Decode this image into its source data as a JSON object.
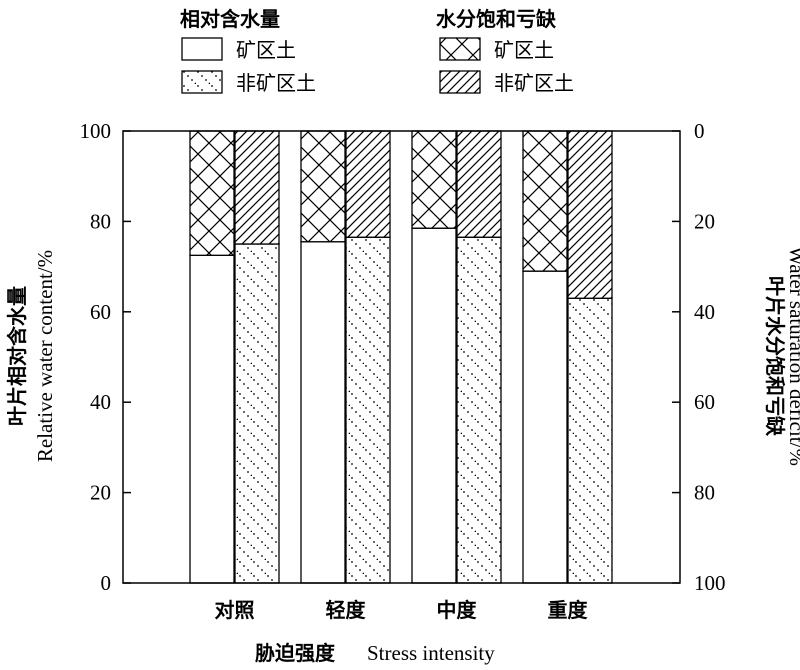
{
  "chart_data": {
    "type": "bar",
    "stacked": true,
    "categories": [
      "对照",
      "轻度",
      "中度",
      "重度"
    ],
    "series": [
      {
        "name": "矿区土",
        "group": "相对含水量",
        "values": [
          72.5,
          75.5,
          78.5,
          69.0
        ],
        "pattern": "blank"
      },
      {
        "name": "非矿区土",
        "group": "相对含水量",
        "values": [
          75.0,
          76.5,
          76.5,
          63.0
        ],
        "pattern": "dots"
      },
      {
        "name": "矿区土",
        "group": "水分饱和亏缺",
        "values": [
          27.5,
          24.5,
          21.5,
          31.0
        ],
        "pattern": "crosshatch"
      },
      {
        "name": "非矿区土",
        "group": "水分饱和亏缺",
        "values": [
          25.0,
          23.5,
          23.5,
          37.0
        ],
        "pattern": "diagonal"
      }
    ],
    "xlabel": {
      "cn": "胁迫强度",
      "en": "Stress intensity"
    },
    "ylabel_left": {
      "cn": "叶片相对含水量",
      "en": "Relative water content/%"
    },
    "ylabel_right": {
      "cn": "叶片水分饱和亏缺",
      "en": "Water saturation deficit/%"
    },
    "ylim_left": [
      0,
      100
    ],
    "ylim_right": [
      100,
      0
    ],
    "yticks_left": [
      "0",
      "20",
      "40",
      "60",
      "80",
      "100"
    ],
    "yticks_right": [
      "100",
      "80",
      "60",
      "40",
      "20",
      "0"
    ],
    "legend": {
      "placement": "top",
      "groups": [
        {
          "title": "相对含水量",
          "items": [
            "矿区土",
            "非矿区土"
          ]
        },
        {
          "title": "水分饱和亏缺",
          "items": [
            "矿区土",
            "非矿区土"
          ]
        }
      ]
    }
  }
}
